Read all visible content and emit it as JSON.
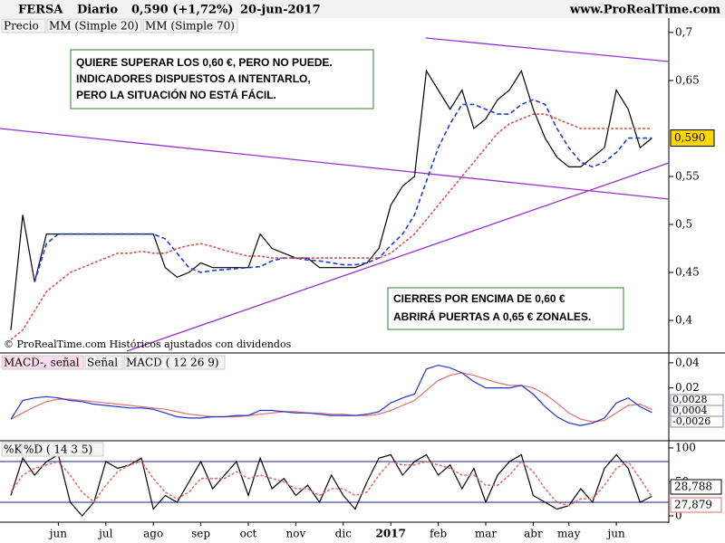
{
  "header": {
    "symbol": "FERSA",
    "period": "Diario",
    "price": "0,590 (+1,72%)",
    "date": "20-jun-2017",
    "site": "www.ProRealTime.com"
  },
  "footer": "© ProRealTime.com  Históricos ajustados con dividendos",
  "chart_data": [
    {
      "type": "line",
      "ylim": [
        0.368,
        0.715
      ],
      "yticks": [
        {
          "value": 0.4,
          "label": "0,4"
        },
        {
          "value": 0.45,
          "label": "0,45"
        },
        {
          "value": 0.5,
          "label": "0,5"
        },
        {
          "value": 0.55,
          "label": "0,55"
        },
        {
          "value": 0.65,
          "label": "0,65"
        },
        {
          "value": 0.7,
          "label": "0,7"
        }
      ],
      "price_label": {
        "value": 0.59,
        "label": "0,590"
      },
      "annotations": [
        "QUIERE SUPERAR LOS 0,60 €, PERO NO PUEDE.",
        "INDICADORES DISPUESTOS A INTENTARLO,",
        "PERO LA SITUACIÓN NO ESTÁ FÁCIL.",
        "CIERRES POR ENCIMA DE 0,60 €",
        "ABRIRÁ PUERTAS A 0,65 € ZONALES."
      ],
      "series": [
        {
          "name": "Precio",
          "color": "#000000",
          "values": [
            0.39,
            0.51,
            0.44,
            0.49,
            0.49,
            0.49,
            0.49,
            0.49,
            0.49,
            0.49,
            0.49,
            0.49,
            0.49,
            0.455,
            0.445,
            0.45,
            0.46,
            0.455,
            0.455,
            0.455,
            0.455,
            0.49,
            0.475,
            0.47,
            0.465,
            0.465,
            0.455,
            0.455,
            0.455,
            0.455,
            0.46,
            0.475,
            0.52,
            0.54,
            0.55,
            0.66,
            0.64,
            0.62,
            0.64,
            0.6,
            0.61,
            0.63,
            0.64,
            0.66,
            0.62,
            0.59,
            0.57,
            0.56,
            0.56,
            0.57,
            0.58,
            0.64,
            0.62,
            0.58,
            0.59
          ]
        },
        {
          "name": "MM (Simple 20)",
          "color": "#1a3fd6",
          "dashed": true,
          "values": [
            null,
            null,
            0.44,
            0.48,
            0.49,
            0.49,
            0.49,
            0.49,
            0.49,
            0.49,
            0.49,
            0.49,
            0.49,
            0.485,
            0.47,
            0.455,
            0.45,
            0.452,
            0.453,
            0.454,
            0.455,
            0.456,
            0.462,
            0.465,
            0.465,
            0.463,
            0.462,
            0.46,
            0.458,
            0.458,
            0.46,
            0.465,
            0.478,
            0.49,
            0.51,
            0.545,
            0.58,
            0.605,
            0.625,
            0.625,
            0.62,
            0.615,
            0.615,
            0.625,
            0.63,
            0.625,
            0.6,
            0.58,
            0.565,
            0.56,
            0.565,
            0.575,
            0.59,
            0.59,
            0.59
          ]
        },
        {
          "name": "MM (Simple 70)",
          "color": "#d9534f",
          "dashed": true,
          "values": [
            0.38,
            0.39,
            0.41,
            0.43,
            0.44,
            0.45,
            0.455,
            0.46,
            0.465,
            0.47,
            0.47,
            0.472,
            0.47,
            0.47,
            0.475,
            0.478,
            0.48,
            0.477,
            0.473,
            0.47,
            0.467,
            0.467,
            0.465,
            0.465,
            0.465,
            0.465,
            0.465,
            0.465,
            0.465,
            0.465,
            0.465,
            0.465,
            0.47,
            0.48,
            0.49,
            0.505,
            0.52,
            0.535,
            0.55,
            0.565,
            0.58,
            0.595,
            0.605,
            0.61,
            0.615,
            0.615,
            0.61,
            0.605,
            0.6,
            0.6,
            0.6,
            0.6,
            0.6,
            0.6,
            0.6
          ]
        }
      ]
    },
    {
      "type": "line",
      "ylim": [
        -0.0207,
        0.0464
      ],
      "yticks": [
        {
          "value": 0.02,
          "label": "0,02"
        },
        {
          "value": 0.04,
          "label": "0,04"
        }
      ],
      "legend_extra": "MACD-, señal",
      "right_labels": [
        "0,0028",
        "0,0004",
        "-0,0026"
      ],
      "series": [
        {
          "name": "Señal",
          "color": "#e0706a",
          "values": [
            -0.005,
            0.0,
            0.005,
            0.009,
            0.011,
            0.011,
            0.01,
            0.009,
            0.008,
            0.007,
            0.006,
            0.005,
            0.004,
            0.003,
            0.001,
            -0.001,
            -0.002,
            -0.003,
            -0.003,
            -0.003,
            -0.002,
            -0.001,
            0.0,
            0.001,
            0.001,
            0.0,
            0.0,
            -0.001,
            -0.001,
            -0.002,
            -0.002,
            -0.001,
            0.002,
            0.006,
            0.01,
            0.018,
            0.026,
            0.03,
            0.032,
            0.03,
            0.027,
            0.024,
            0.022,
            0.022,
            0.02,
            0.015,
            0.008,
            0.0,
            -0.005,
            -0.007,
            -0.006,
            0.0,
            0.006,
            0.007,
            0.0028
          ]
        },
        {
          "name": "MACD ( 12 26 9)",
          "color": "#2233cc",
          "values": [
            -0.005,
            0.01,
            0.012,
            0.013,
            0.012,
            0.01,
            0.009,
            0.007,
            0.006,
            0.005,
            0.004,
            0.004,
            0.003,
            0.0,
            -0.003,
            -0.004,
            -0.004,
            -0.003,
            -0.003,
            -0.002,
            -0.002,
            0.002,
            0.002,
            0.001,
            0.0,
            0.0,
            -0.001,
            -0.002,
            -0.002,
            -0.002,
            -0.001,
            0.001,
            0.008,
            0.012,
            0.015,
            0.035,
            0.038,
            0.036,
            0.032,
            0.025,
            0.02,
            0.02,
            0.02,
            0.022,
            0.015,
            0.005,
            -0.003,
            -0.008,
            -0.01,
            -0.008,
            -0.004,
            0.008,
            0.012,
            0.005,
            0.0004
          ]
        }
      ]
    },
    {
      "type": "line",
      "ylim": [
        -6.7,
        109.3
      ],
      "yticks": [
        0,
        50,
        100
      ],
      "bands": [
        20,
        80
      ],
      "categories": [
        null,
        null,
        null,
        null,
        "jun",
        null,
        null,
        null,
        "jul",
        null,
        null,
        null,
        "ago",
        null,
        null,
        null,
        "sep",
        null,
        null,
        null,
        "oct",
        null,
        null,
        null,
        "nov",
        null,
        null,
        null,
        "dic",
        null,
        null,
        null,
        "2017",
        null,
        null,
        null,
        "feb",
        null,
        null,
        null,
        "mar",
        null,
        null,
        null,
        "abr",
        null,
        null,
        "may",
        null,
        null,
        null,
        "jun",
        null,
        null,
        null
      ],
      "series": [
        {
          "name": "%K",
          "color": "#000000",
          "value_label": "28,788",
          "values": [
            30,
            85,
            60,
            80,
            90,
            20,
            0,
            20,
            80,
            70,
            75,
            85,
            10,
            30,
            20,
            50,
            80,
            40,
            60,
            80,
            30,
            85,
            40,
            55,
            30,
            45,
            20,
            60,
            30,
            10,
            50,
            85,
            90,
            60,
            80,
            90,
            60,
            75,
            40,
            70,
            20,
            60,
            80,
            90,
            30,
            20,
            10,
            15,
            40,
            20,
            70,
            90,
            70,
            20,
            28.788
          ]
        },
        {
          "name": "%D ( 14 3 5)",
          "color": "#e0706a",
          "dashed": true,
          "value_label": "27,879",
          "values": [
            35,
            60,
            70,
            75,
            80,
            60,
            35,
            20,
            45,
            65,
            75,
            80,
            55,
            35,
            25,
            35,
            55,
            55,
            55,
            65,
            55,
            60,
            55,
            50,
            40,
            40,
            30,
            40,
            40,
            30,
            35,
            60,
            80,
            75,
            75,
            80,
            75,
            70,
            60,
            60,
            45,
            45,
            60,
            80,
            65,
            40,
            20,
            15,
            25,
            25,
            45,
            70,
            80,
            55,
            27.879
          ]
        }
      ]
    }
  ]
}
